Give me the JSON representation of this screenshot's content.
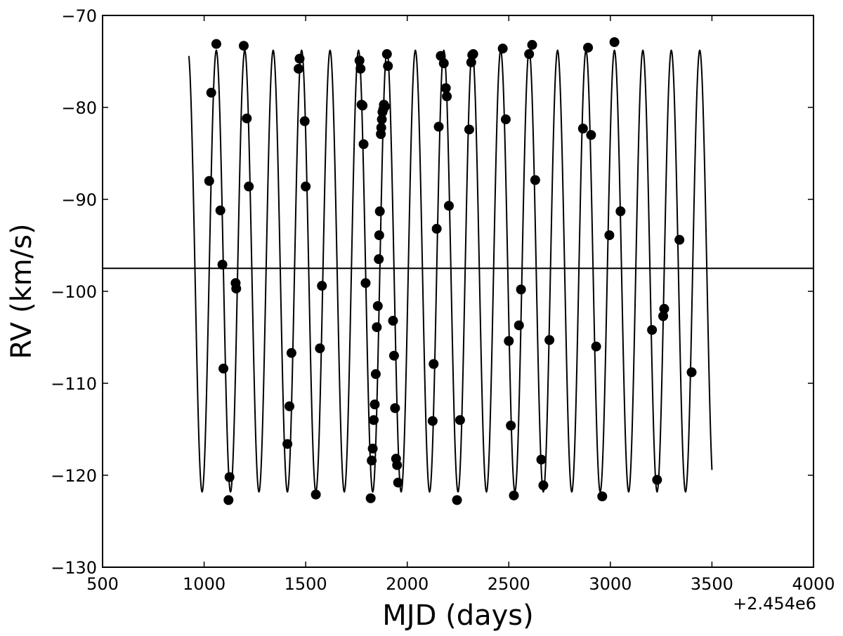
{
  "chart_data": {
    "type": "scatter",
    "xlabel": "MJD (days)",
    "ylabel": "RV (km/s)",
    "x_offset_label": "+2.454e6",
    "x_offset": 2454000,
    "xlim": [
      500,
      4000
    ],
    "ylim": [
      -130,
      -70
    ],
    "x_ticks": [
      500,
      1000,
      1500,
      2000,
      2500,
      3000,
      3500,
      4000
    ],
    "x_tick_labels": [
      "500",
      "1000",
      "1500",
      "2000",
      "2500",
      "3000",
      "3500",
      "4000"
    ],
    "y_ticks": [
      -70,
      -80,
      -90,
      -100,
      -110,
      -120,
      -130
    ],
    "y_tick_labels": [
      "−70",
      "−80",
      "−90",
      "−100",
      "−110",
      "−120",
      "−130"
    ],
    "grid": false,
    "systemic_velocity": -97.5,
    "model_curve": {
      "kind": "sinusoid",
      "period": 140,
      "semi_amplitude": 24,
      "mean": -97.8,
      "x_start": 925,
      "x_end": 3500,
      "ref_peak_x": 1060
    },
    "points": [
      {
        "x": 1025,
        "y": -88.0
      },
      {
        "x": 1035,
        "y": -78.4
      },
      {
        "x": 1060,
        "y": -73.1
      },
      {
        "x": 1080,
        "y": -91.2
      },
      {
        "x": 1090,
        "y": -97.1
      },
      {
        "x": 1095,
        "y": -108.4
      },
      {
        "x": 1120,
        "y": -122.7
      },
      {
        "x": 1125,
        "y": -120.2
      },
      {
        "x": 1155,
        "y": -99.1
      },
      {
        "x": 1158,
        "y": -99.7
      },
      {
        "x": 1195,
        "y": -73.3
      },
      {
        "x": 1210,
        "y": -81.2
      },
      {
        "x": 1220,
        "y": -88.6
      },
      {
        "x": 1410,
        "y": -116.6
      },
      {
        "x": 1420,
        "y": -112.5
      },
      {
        "x": 1430,
        "y": -106.7
      },
      {
        "x": 1465,
        "y": -75.8
      },
      {
        "x": 1470,
        "y": -74.7
      },
      {
        "x": 1495,
        "y": -81.5
      },
      {
        "x": 1500,
        "y": -88.6
      },
      {
        "x": 1550,
        "y": -122.1
      },
      {
        "x": 1570,
        "y": -106.2
      },
      {
        "x": 1580,
        "y": -99.4
      },
      {
        "x": 1765,
        "y": -74.9
      },
      {
        "x": 1770,
        "y": -75.8
      },
      {
        "x": 1775,
        "y": -79.7
      },
      {
        "x": 1780,
        "y": -79.8
      },
      {
        "x": 1785,
        "y": -84.0
      },
      {
        "x": 1795,
        "y": -99.1
      },
      {
        "x": 1820,
        "y": -122.5
      },
      {
        "x": 1825,
        "y": -118.4
      },
      {
        "x": 1830,
        "y": -117.1
      },
      {
        "x": 1835,
        "y": -114.0
      },
      {
        "x": 1840,
        "y": -112.3
      },
      {
        "x": 1845,
        "y": -109.0
      },
      {
        "x": 1850,
        "y": -103.9
      },
      {
        "x": 1855,
        "y": -101.6
      },
      {
        "x": 1860,
        "y": -96.5
      },
      {
        "x": 1862,
        "y": -93.9
      },
      {
        "x": 1865,
        "y": -91.3
      },
      {
        "x": 1870,
        "y": -82.9
      },
      {
        "x": 1872,
        "y": -82.2
      },
      {
        "x": 1875,
        "y": -81.3
      },
      {
        "x": 1878,
        "y": -80.5
      },
      {
        "x": 1882,
        "y": -80.2
      },
      {
        "x": 1885,
        "y": -79.7
      },
      {
        "x": 1890,
        "y": -79.9
      },
      {
        "x": 1900,
        "y": -74.2
      },
      {
        "x": 1905,
        "y": -75.5
      },
      {
        "x": 1930,
        "y": -103.2
      },
      {
        "x": 1935,
        "y": -107.0
      },
      {
        "x": 1940,
        "y": -112.7
      },
      {
        "x": 1945,
        "y": -118.2
      },
      {
        "x": 1950,
        "y": -118.9
      },
      {
        "x": 1955,
        "y": -120.8
      },
      {
        "x": 2125,
        "y": -114.1
      },
      {
        "x": 2130,
        "y": -107.9
      },
      {
        "x": 2145,
        "y": -93.2
      },
      {
        "x": 2155,
        "y": -82.1
      },
      {
        "x": 2165,
        "y": -74.4
      },
      {
        "x": 2180,
        "y": -75.2
      },
      {
        "x": 2190,
        "y": -77.9
      },
      {
        "x": 2195,
        "y": -78.8
      },
      {
        "x": 2205,
        "y": -90.7
      },
      {
        "x": 2245,
        "y": -122.7
      },
      {
        "x": 2260,
        "y": -114.0
      },
      {
        "x": 2305,
        "y": -82.4
      },
      {
        "x": 2315,
        "y": -75.1
      },
      {
        "x": 2320,
        "y": -74.3
      },
      {
        "x": 2325,
        "y": -74.2
      },
      {
        "x": 2470,
        "y": -73.6
      },
      {
        "x": 2485,
        "y": -81.3
      },
      {
        "x": 2500,
        "y": -105.4
      },
      {
        "x": 2510,
        "y": -114.6
      },
      {
        "x": 2525,
        "y": -122.2
      },
      {
        "x": 2550,
        "y": -103.7
      },
      {
        "x": 2560,
        "y": -99.8
      },
      {
        "x": 2600,
        "y": -74.2
      },
      {
        "x": 2615,
        "y": -73.2
      },
      {
        "x": 2630,
        "y": -87.9
      },
      {
        "x": 2660,
        "y": -118.3
      },
      {
        "x": 2670,
        "y": -121.1
      },
      {
        "x": 2700,
        "y": -105.3
      },
      {
        "x": 2865,
        "y": -82.3
      },
      {
        "x": 2890,
        "y": -73.5
      },
      {
        "x": 2905,
        "y": -83.0
      },
      {
        "x": 2930,
        "y": -106.0
      },
      {
        "x": 2960,
        "y": -122.3
      },
      {
        "x": 2995,
        "y": -93.9
      },
      {
        "x": 3020,
        "y": -72.9
      },
      {
        "x": 3050,
        "y": -91.3
      },
      {
        "x": 3205,
        "y": -104.2
      },
      {
        "x": 3230,
        "y": -120.5
      },
      {
        "x": 3260,
        "y": -102.7
      },
      {
        "x": 3265,
        "y": -101.9
      },
      {
        "x": 3340,
        "y": -94.4
      },
      {
        "x": 3400,
        "y": -108.8
      }
    ]
  }
}
